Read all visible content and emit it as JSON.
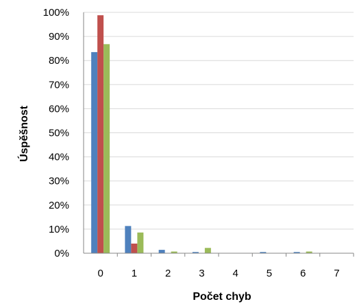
{
  "colors": {
    "series": [
      "#4F81BD",
      "#C0504D",
      "#9BBB59"
    ],
    "gridline": "#d9d9d9",
    "axis": "#868686"
  },
  "chart_data": {
    "type": "bar",
    "title": "",
    "xlabel": "Počet chyb",
    "ylabel": "Úspěšnost",
    "categories": [
      "0",
      "1",
      "2",
      "3",
      "4",
      "5",
      "6",
      "7"
    ],
    "ylim": [
      0,
      1
    ],
    "y_ticks": [
      "0%",
      "10%",
      "20%",
      "30%",
      "40%",
      "50%",
      "60%",
      "70%",
      "80%",
      "90%",
      "100%"
    ],
    "grid": true,
    "legend": "none",
    "series": [
      {
        "values": [
          0.835,
          0.113,
          0.014,
          0.005,
          0.0,
          0.005,
          0.005,
          0.0
        ]
      },
      {
        "values": [
          0.988,
          0.04,
          0.0,
          0.0,
          0.0,
          0.0,
          0.0,
          0.0
        ]
      },
      {
        "values": [
          0.868,
          0.086,
          0.007,
          0.022,
          0.0,
          0.0,
          0.007,
          0.0
        ]
      }
    ]
  }
}
